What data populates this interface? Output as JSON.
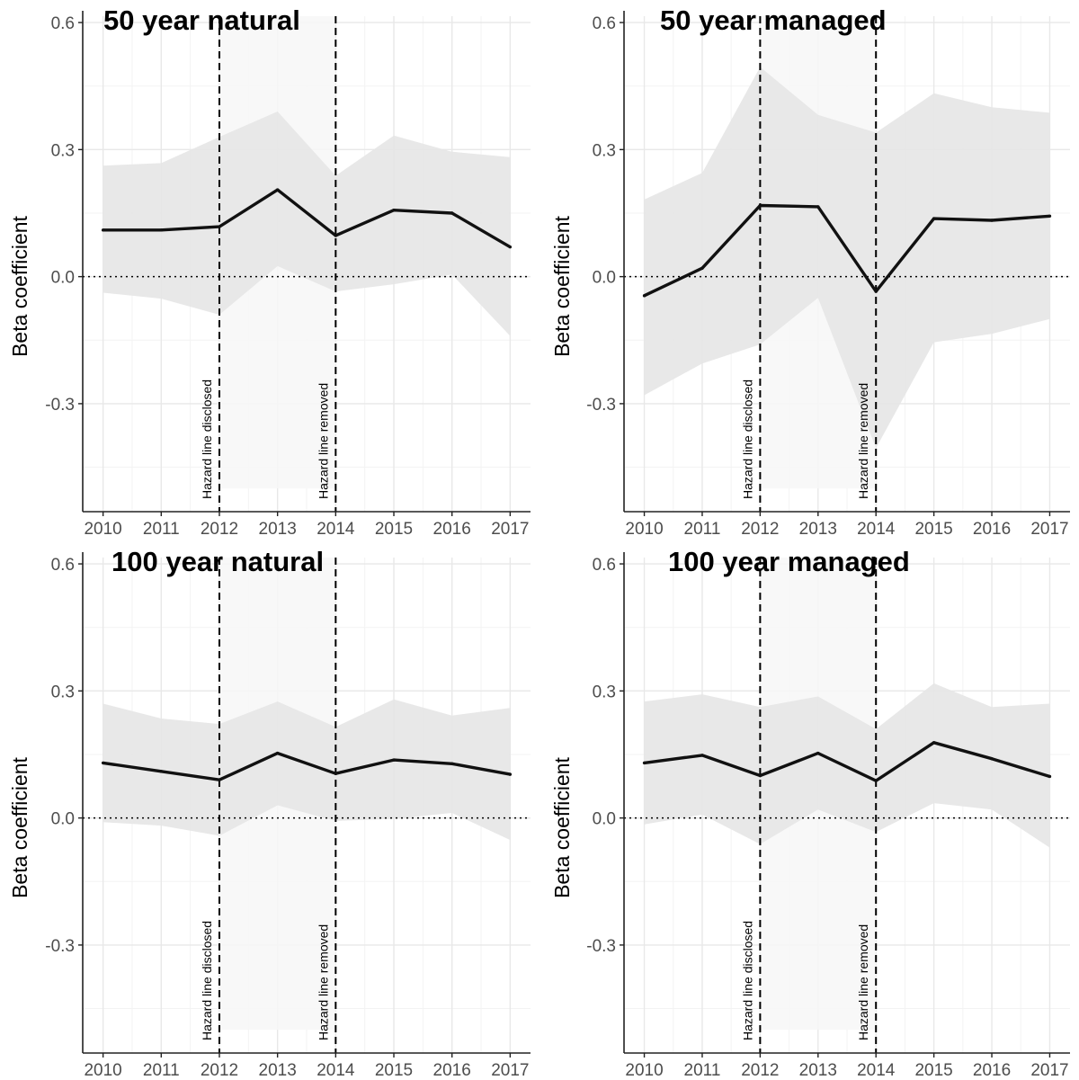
{
  "colors": {
    "line": "#111111",
    "ribbon": "#e6e6e6",
    "highlight_band": "#f7f7f7",
    "grid_major": "#e8e8e8",
    "grid_minor": "#f3f3f3",
    "axis": "#222222",
    "tick_label": "#4d4d4d"
  },
  "chart_data": [
    {
      "type": "line",
      "title": "50 year natural",
      "ylabel": "Beta coefficient",
      "x": [
        2010,
        2011,
        2012,
        2013,
        2014,
        2015,
        2016,
        2017
      ],
      "xlim": [
        2009.65,
        2017.35
      ],
      "ylim": [
        -0.555,
        0.615
      ],
      "yticks": [
        -0.3,
        0.0,
        0.3,
        0.6
      ],
      "ytick_labels": [
        "-0.3",
        "0.0",
        "0.3",
        "0.6"
      ],
      "xtick_labels": [
        "2010",
        "2011",
        "2012",
        "2013",
        "2014",
        "2015",
        "2016",
        "2017"
      ],
      "series": [
        {
          "values": [
            0.11,
            0.11,
            0.118,
            0.205,
            0.097,
            0.157,
            0.15,
            0.07
          ],
          "lower": [
            -0.038,
            -0.052,
            -0.09,
            0.025,
            -0.035,
            -0.018,
            0.005,
            -0.14
          ],
          "upper": [
            0.262,
            0.268,
            0.33,
            0.39,
            0.238,
            0.333,
            0.295,
            0.282
          ]
        }
      ],
      "highlight_band": [
        2012,
        2014,
        -0.5,
        0.615
      ],
      "reference_line_y": 0.0,
      "vlines": [
        {
          "x": 2012,
          "label": "Hazard line disclosed"
        },
        {
          "x": 2014,
          "label": "Hazard line removed"
        }
      ],
      "grid": true,
      "legend": "none"
    },
    {
      "type": "line",
      "title": "50 year managed",
      "ylabel": "Beta coefficient",
      "x": [
        2010,
        2011,
        2012,
        2013,
        2014,
        2015,
        2016,
        2017
      ],
      "xlim": [
        2009.65,
        2017.35
      ],
      "ylim": [
        -0.555,
        0.615
      ],
      "yticks": [
        -0.3,
        0.0,
        0.3,
        0.6
      ],
      "ytick_labels": [
        "-0.3",
        "0.0",
        "0.3",
        "0.6"
      ],
      "xtick_labels": [
        "2010",
        "2011",
        "2012",
        "2013",
        "2014",
        "2015",
        "2016",
        "2017"
      ],
      "series": [
        {
          "values": [
            -0.045,
            0.02,
            0.168,
            0.165,
            -0.035,
            0.137,
            0.133,
            0.143
          ],
          "lower": [
            -0.28,
            -0.205,
            -0.16,
            -0.05,
            -0.405,
            -0.155,
            -0.135,
            -0.1
          ],
          "upper": [
            0.182,
            0.245,
            0.495,
            0.382,
            0.34,
            0.433,
            0.4,
            0.387
          ]
        }
      ],
      "highlight_band": [
        2012,
        2014,
        -0.5,
        0.615
      ],
      "reference_line_y": 0.0,
      "vlines": [
        {
          "x": 2012,
          "label": "Hazard line disclosed"
        },
        {
          "x": 2014,
          "label": "Hazard line removed"
        }
      ],
      "grid": true,
      "legend": "none"
    },
    {
      "type": "line",
      "title": "100 year natural",
      "ylabel": "Beta coefficient",
      "x": [
        2010,
        2011,
        2012,
        2013,
        2014,
        2015,
        2016,
        2017
      ],
      "xlim": [
        2009.65,
        2017.35
      ],
      "ylim": [
        -0.555,
        0.615
      ],
      "yticks": [
        -0.3,
        0.0,
        0.3,
        0.6
      ],
      "ytick_labels": [
        "-0.3",
        "0.0",
        "0.3",
        "0.6"
      ],
      "xtick_labels": [
        "2010",
        "2011",
        "2012",
        "2013",
        "2014",
        "2015",
        "2016",
        "2017"
      ],
      "series": [
        {
          "values": [
            0.13,
            0.11,
            0.09,
            0.153,
            0.105,
            0.137,
            0.128,
            0.103
          ],
          "lower": [
            -0.01,
            -0.018,
            -0.042,
            0.03,
            -0.007,
            -0.002,
            0.012,
            -0.052
          ],
          "upper": [
            0.27,
            0.235,
            0.222,
            0.275,
            0.215,
            0.28,
            0.242,
            0.26
          ]
        }
      ],
      "highlight_band": [
        2012,
        2014,
        -0.5,
        0.615
      ],
      "reference_line_y": 0.0,
      "vlines": [
        {
          "x": 2012,
          "label": "Hazard line disclosed"
        },
        {
          "x": 2014,
          "label": "Hazard line removed"
        }
      ],
      "grid": true,
      "legend": "none"
    },
    {
      "type": "line",
      "title": "100 year managed",
      "ylabel": "Beta coefficient",
      "x": [
        2010,
        2011,
        2012,
        2013,
        2014,
        2015,
        2016,
        2017
      ],
      "xlim": [
        2009.65,
        2017.35
      ],
      "ylim": [
        -0.555,
        0.615
      ],
      "yticks": [
        -0.3,
        0.0,
        0.3,
        0.6
      ],
      "ytick_labels": [
        "-0.3",
        "0.0",
        "0.3",
        "0.6"
      ],
      "xtick_labels": [
        "2010",
        "2011",
        "2012",
        "2013",
        "2014",
        "2015",
        "2016",
        "2017"
      ],
      "series": [
        {
          "values": [
            0.13,
            0.148,
            0.1,
            0.153,
            0.088,
            0.178,
            0.14,
            0.098
          ],
          "lower": [
            -0.015,
            0.008,
            -0.062,
            0.02,
            -0.033,
            0.035,
            0.02,
            -0.07
          ],
          "upper": [
            0.275,
            0.292,
            0.262,
            0.287,
            0.21,
            0.318,
            0.262,
            0.27
          ]
        }
      ],
      "highlight_band": [
        2012,
        2014,
        -0.5,
        0.615
      ],
      "reference_line_y": 0.0,
      "vlines": [
        {
          "x": 2012,
          "label": "Hazard line disclosed"
        },
        {
          "x": 2014,
          "label": "Hazard line removed"
        }
      ],
      "grid": true,
      "legend": "none"
    }
  ]
}
